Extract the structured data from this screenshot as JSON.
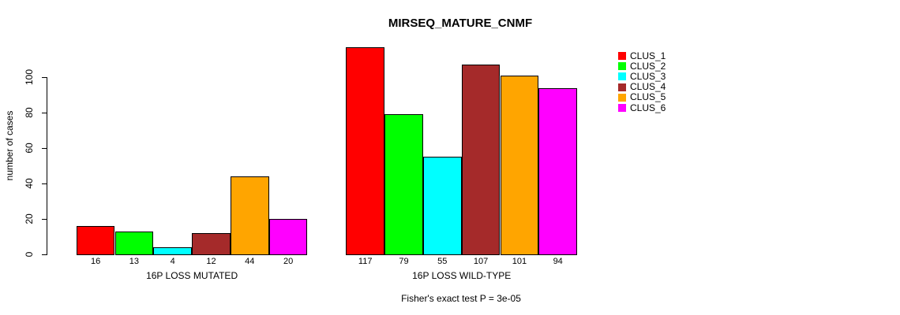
{
  "chart_data": {
    "type": "bar",
    "title": "MIRSEQ_MATURE_CNMF",
    "ylabel": "number of cases",
    "annotation": "Fisher's exact test P = 3e-05",
    "categories": [
      "16P LOSS MUTATED",
      "16P LOSS WILD-TYPE"
    ],
    "series": [
      {
        "name": "CLUS_1",
        "color": "#ff0000",
        "values": [
          16,
          117
        ]
      },
      {
        "name": "CLUS_2",
        "color": "#00ff00",
        "values": [
          13,
          79
        ]
      },
      {
        "name": "CLUS_3",
        "color": "#00ffff",
        "values": [
          4,
          55
        ]
      },
      {
        "name": "CLUS_4",
        "color": "#a52a2a",
        "values": [
          12,
          107
        ]
      },
      {
        "name": "CLUS_5",
        "color": "#ffa500",
        "values": [
          44,
          101
        ]
      },
      {
        "name": "CLUS_6",
        "color": "#ff00ff",
        "values": [
          20,
          94
        ]
      }
    ],
    "yticks": [
      0,
      20,
      40,
      60,
      80,
      100
    ],
    "ylim": [
      0,
      100
    ],
    "bar_value_labels_shown": true,
    "grid": false,
    "legend_position": "right",
    "bar_border_color": "#000000",
    "background_color": "#ffffff"
  }
}
